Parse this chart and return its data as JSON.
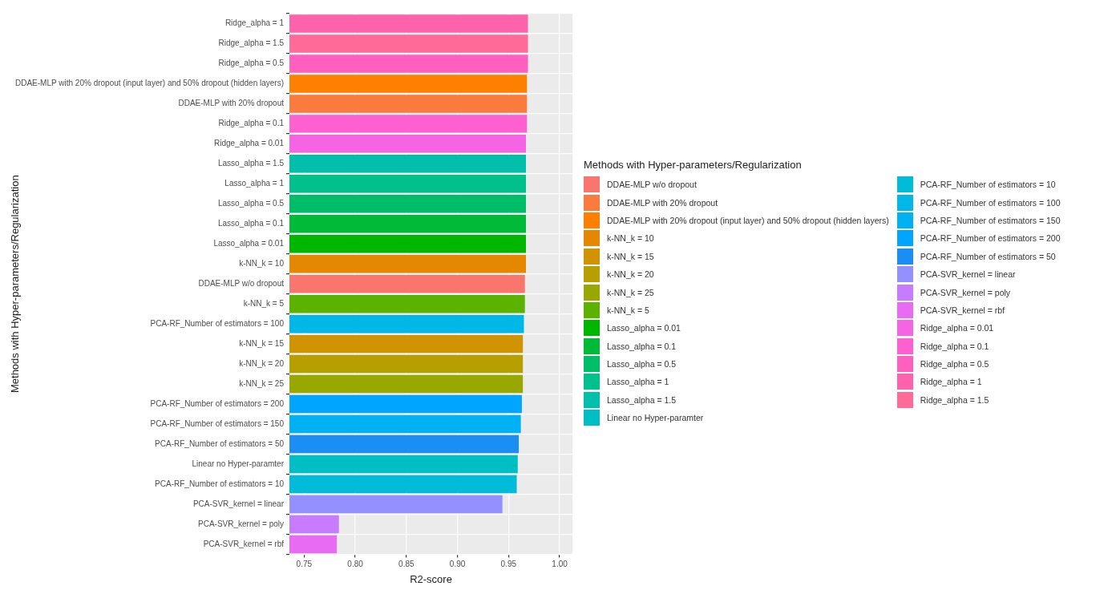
{
  "chart_data": {
    "type": "bar",
    "orientation": "horizontal",
    "xlabel": "R2-score",
    "ylabel": "Methods with Hyper-parameters/Regularization",
    "legend_title": "Methods with Hyper-parameters/Regularization",
    "categories": [
      "Ridge_alpha = 1",
      "Ridge_alpha = 1.5",
      "Ridge_alpha = 0.5",
      "DDAE-MLP with 20% dropout (input layer) and 50% dropout (hidden layers)",
      "DDAE-MLP with 20% dropout",
      "Ridge_alpha = 0.1",
      "Ridge_alpha = 0.01",
      "Lasso_alpha = 1.5",
      "Lasso_alpha = 1",
      "Lasso_alpha = 0.5",
      "Lasso_alpha = 0.1",
      "Lasso_alpha = 0.01",
      "k-NN_k = 10",
      "DDAE-MLP w/o dropout",
      "k-NN_k = 5",
      "PCA-RF_Number of estimators = 100",
      "k-NN_k = 15",
      "k-NN_k = 20",
      "k-NN_k = 25",
      "PCA-RF_Number of estimators = 200",
      "PCA-RF_Number of estimators = 150",
      "PCA-RF_Number of estimators = 50",
      "Linear no Hyper-paramter",
      "PCA-RF_Number of estimators = 10",
      "PCA-SVR_kernel = linear",
      "PCA-SVR_kernel = poly",
      "PCA-SVR_kernel = rbf"
    ],
    "series": [
      {
        "name": "DDAE-MLP w/o dropout",
        "color": "#f8766d",
        "values": [
          null,
          null,
          null,
          null,
          null,
          null,
          null,
          null,
          null,
          null,
          null,
          null,
          null,
          0.966,
          null,
          null,
          null,
          null,
          null,
          null,
          null,
          null,
          null,
          null,
          null,
          null,
          null
        ]
      },
      {
        "name": "DDAE-MLP with 20% dropout",
        "color": "#fb7a3d",
        "values": [
          null,
          null,
          null,
          null,
          0.968,
          null,
          null,
          null,
          null,
          null,
          null,
          null,
          null,
          null,
          null,
          null,
          null,
          null,
          null,
          null,
          null,
          null,
          null,
          null,
          null,
          null,
          null
        ]
      },
      {
        "name": "DDAE-MLP with 20% dropout (input layer) and 50% dropout (hidden layers)",
        "color": "#ff8000",
        "values": [
          null,
          null,
          null,
          0.968,
          null,
          null,
          null,
          null,
          null,
          null,
          null,
          null,
          null,
          null,
          null,
          null,
          null,
          null,
          null,
          null,
          null,
          null,
          null,
          null,
          null,
          null,
          null
        ]
      },
      {
        "name": "k-NN_k = 10",
        "color": "#e58700",
        "values": [
          null,
          null,
          null,
          null,
          null,
          null,
          null,
          null,
          null,
          null,
          null,
          null,
          0.967,
          null,
          null,
          null,
          null,
          null,
          null,
          null,
          null,
          null,
          null,
          null,
          null,
          null,
          null
        ]
      },
      {
        "name": "k-NN_k = 15",
        "color": "#d09400",
        "values": [
          null,
          null,
          null,
          null,
          null,
          null,
          null,
          null,
          null,
          null,
          null,
          null,
          null,
          null,
          null,
          null,
          0.964,
          null,
          null,
          null,
          null,
          null,
          null,
          null,
          null,
          null,
          null
        ]
      },
      {
        "name": "k-NN_k = 20",
        "color": "#b79f00",
        "values": [
          null,
          null,
          null,
          null,
          null,
          null,
          null,
          null,
          null,
          null,
          null,
          null,
          null,
          null,
          null,
          null,
          null,
          0.964,
          null,
          null,
          null,
          null,
          null,
          null,
          null,
          null,
          null
        ]
      },
      {
        "name": "k-NN_k = 25",
        "color": "#99a800",
        "values": [
          null,
          null,
          null,
          null,
          null,
          null,
          null,
          null,
          null,
          null,
          null,
          null,
          null,
          null,
          null,
          null,
          null,
          null,
          0.964,
          null,
          null,
          null,
          null,
          null,
          null,
          null,
          null
        ]
      },
      {
        "name": "k-NN_k = 5",
        "color": "#5bb300",
        "values": [
          null,
          null,
          null,
          null,
          null,
          null,
          null,
          null,
          null,
          null,
          null,
          null,
          null,
          null,
          0.966,
          null,
          null,
          null,
          null,
          null,
          null,
          null,
          null,
          null,
          null,
          null,
          null
        ]
      },
      {
        "name": "Lasso_alpha = 0.01",
        "color": "#00b700",
        "values": [
          null,
          null,
          null,
          null,
          null,
          null,
          null,
          null,
          null,
          null,
          null,
          0.967,
          null,
          null,
          null,
          null,
          null,
          null,
          null,
          null,
          null,
          null,
          null,
          null,
          null,
          null,
          null
        ]
      },
      {
        "name": "Lasso_alpha = 0.1",
        "color": "#00ba38",
        "values": [
          null,
          null,
          null,
          null,
          null,
          null,
          null,
          null,
          null,
          null,
          0.967,
          null,
          null,
          null,
          null,
          null,
          null,
          null,
          null,
          null,
          null,
          null,
          null,
          null,
          null,
          null,
          null
        ]
      },
      {
        "name": "Lasso_alpha = 0.5",
        "color": "#00be67",
        "values": [
          null,
          null,
          null,
          null,
          null,
          null,
          null,
          null,
          null,
          0.967,
          null,
          null,
          null,
          null,
          null,
          null,
          null,
          null,
          null,
          null,
          null,
          null,
          null,
          null,
          null,
          null,
          null
        ]
      },
      {
        "name": "Lasso_alpha = 1",
        "color": "#00c08b",
        "values": [
          null,
          null,
          null,
          null,
          null,
          null,
          null,
          null,
          0.967,
          null,
          null,
          null,
          null,
          null,
          null,
          null,
          null,
          null,
          null,
          null,
          null,
          null,
          null,
          null,
          null,
          null,
          null
        ]
      },
      {
        "name": "Lasso_alpha = 1.5",
        "color": "#00c0ab",
        "values": [
          null,
          null,
          null,
          null,
          null,
          null,
          null,
          0.967,
          null,
          null,
          null,
          null,
          null,
          null,
          null,
          null,
          null,
          null,
          null,
          null,
          null,
          null,
          null,
          null,
          null,
          null,
          null
        ]
      },
      {
        "name": "Linear no Hyper-paramter",
        "color": "#00bfc4",
        "values": [
          null,
          null,
          null,
          null,
          null,
          null,
          null,
          null,
          null,
          null,
          null,
          null,
          null,
          null,
          null,
          null,
          null,
          null,
          null,
          null,
          null,
          null,
          0.959,
          null,
          null,
          null,
          null
        ]
      },
      {
        "name": "PCA-RF_Number of estimators = 10",
        "color": "#00bcd8",
        "values": [
          null,
          null,
          null,
          null,
          null,
          null,
          null,
          null,
          null,
          null,
          null,
          null,
          null,
          null,
          null,
          null,
          null,
          null,
          null,
          null,
          null,
          null,
          null,
          0.958,
          null,
          null,
          null
        ]
      },
      {
        "name": "PCA-RF_Number of estimators = 100",
        "color": "#00b8e7",
        "values": [
          null,
          null,
          null,
          null,
          null,
          null,
          null,
          null,
          null,
          null,
          null,
          null,
          null,
          null,
          null,
          0.965,
          null,
          null,
          null,
          null,
          null,
          null,
          null,
          null,
          null,
          null,
          null
        ]
      },
      {
        "name": "PCA-RF_Number of estimators = 150",
        "color": "#00b2f3",
        "values": [
          null,
          null,
          null,
          null,
          null,
          null,
          null,
          null,
          null,
          null,
          null,
          null,
          null,
          null,
          null,
          null,
          null,
          null,
          null,
          null,
          0.962,
          null,
          null,
          null,
          null,
          null,
          null
        ]
      },
      {
        "name": "PCA-RF_Number of estimators = 200",
        "color": "#00a5ff",
        "values": [
          null,
          null,
          null,
          null,
          null,
          null,
          null,
          null,
          null,
          null,
          null,
          null,
          null,
          null,
          null,
          null,
          null,
          null,
          null,
          0.963,
          null,
          null,
          null,
          null,
          null,
          null,
          null
        ]
      },
      {
        "name": "PCA-RF_Number of estimators = 50",
        "color": "#1b8ef5",
        "values": [
          null,
          null,
          null,
          null,
          null,
          null,
          null,
          null,
          null,
          null,
          null,
          null,
          null,
          null,
          null,
          null,
          null,
          null,
          null,
          null,
          null,
          0.96,
          null,
          null,
          null,
          null,
          null
        ]
      },
      {
        "name": "PCA-SVR_kernel = linear",
        "color": "#9590ff",
        "values": [
          null,
          null,
          null,
          null,
          null,
          null,
          null,
          null,
          null,
          null,
          null,
          null,
          null,
          null,
          null,
          null,
          null,
          null,
          null,
          null,
          null,
          null,
          null,
          null,
          0.944,
          null,
          null
        ]
      },
      {
        "name": "PCA-SVR_kernel = poly",
        "color": "#c77cff",
        "values": [
          null,
          null,
          null,
          null,
          null,
          null,
          null,
          null,
          null,
          null,
          null,
          null,
          null,
          null,
          null,
          null,
          null,
          null,
          null,
          null,
          null,
          null,
          null,
          null,
          null,
          0.784,
          null
        ]
      },
      {
        "name": "PCA-SVR_kernel = rbf",
        "color": "#e76bf3",
        "values": [
          null,
          null,
          null,
          null,
          null,
          null,
          null,
          null,
          null,
          null,
          null,
          null,
          null,
          null,
          null,
          null,
          null,
          null,
          null,
          null,
          null,
          null,
          null,
          null,
          null,
          null,
          0.782
        ]
      },
      {
        "name": "Ridge_alpha = 0.01",
        "color": "#f564e3",
        "values": [
          null,
          null,
          null,
          null,
          null,
          null,
          0.967,
          null,
          null,
          null,
          null,
          null,
          null,
          null,
          null,
          null,
          null,
          null,
          null,
          null,
          null,
          null,
          null,
          null,
          null,
          null,
          null
        ]
      },
      {
        "name": "Ridge_alpha = 0.1",
        "color": "#fd61d1",
        "values": [
          null,
          null,
          null,
          null,
          null,
          0.968,
          null,
          null,
          null,
          null,
          null,
          null,
          null,
          null,
          null,
          null,
          null,
          null,
          null,
          null,
          null,
          null,
          null,
          null,
          null,
          null,
          null
        ]
      },
      {
        "name": "Ridge_alpha = 0.5",
        "color": "#ff5fbf",
        "values": [
          null,
          null,
          0.969,
          null,
          null,
          null,
          null,
          null,
          null,
          null,
          null,
          null,
          null,
          null,
          null,
          null,
          null,
          null,
          null,
          null,
          null,
          null,
          null,
          null,
          null,
          null,
          null
        ]
      },
      {
        "name": "Ridge_alpha = 1",
        "color": "#ff62ad",
        "values": [
          0.969,
          null,
          null,
          null,
          null,
          null,
          null,
          null,
          null,
          null,
          null,
          null,
          null,
          null,
          null,
          null,
          null,
          null,
          null,
          null,
          null,
          null,
          null,
          null,
          null,
          null,
          null
        ]
      },
      {
        "name": "Ridge_alpha = 1.5",
        "color": "#ff6a98",
        "values": [
          null,
          0.969,
          null,
          null,
          null,
          null,
          null,
          null,
          null,
          null,
          null,
          null,
          null,
          null,
          null,
          null,
          null,
          null,
          null,
          null,
          null,
          null,
          null,
          null,
          null,
          null,
          null
        ]
      }
    ],
    "xlim": [
      0.7356,
      1.0125
    ],
    "xticks": [
      {
        "value": 0.75,
        "label": "0.75"
      },
      {
        "value": 0.8,
        "label": "0.80"
      },
      {
        "value": 0.85,
        "label": "0.85"
      },
      {
        "value": 0.9,
        "label": "0.90"
      },
      {
        "value": 0.95,
        "label": "0.95"
      },
      {
        "value": 1.0,
        "label": "1.00"
      }
    ],
    "grid": true,
    "legend": "right"
  }
}
